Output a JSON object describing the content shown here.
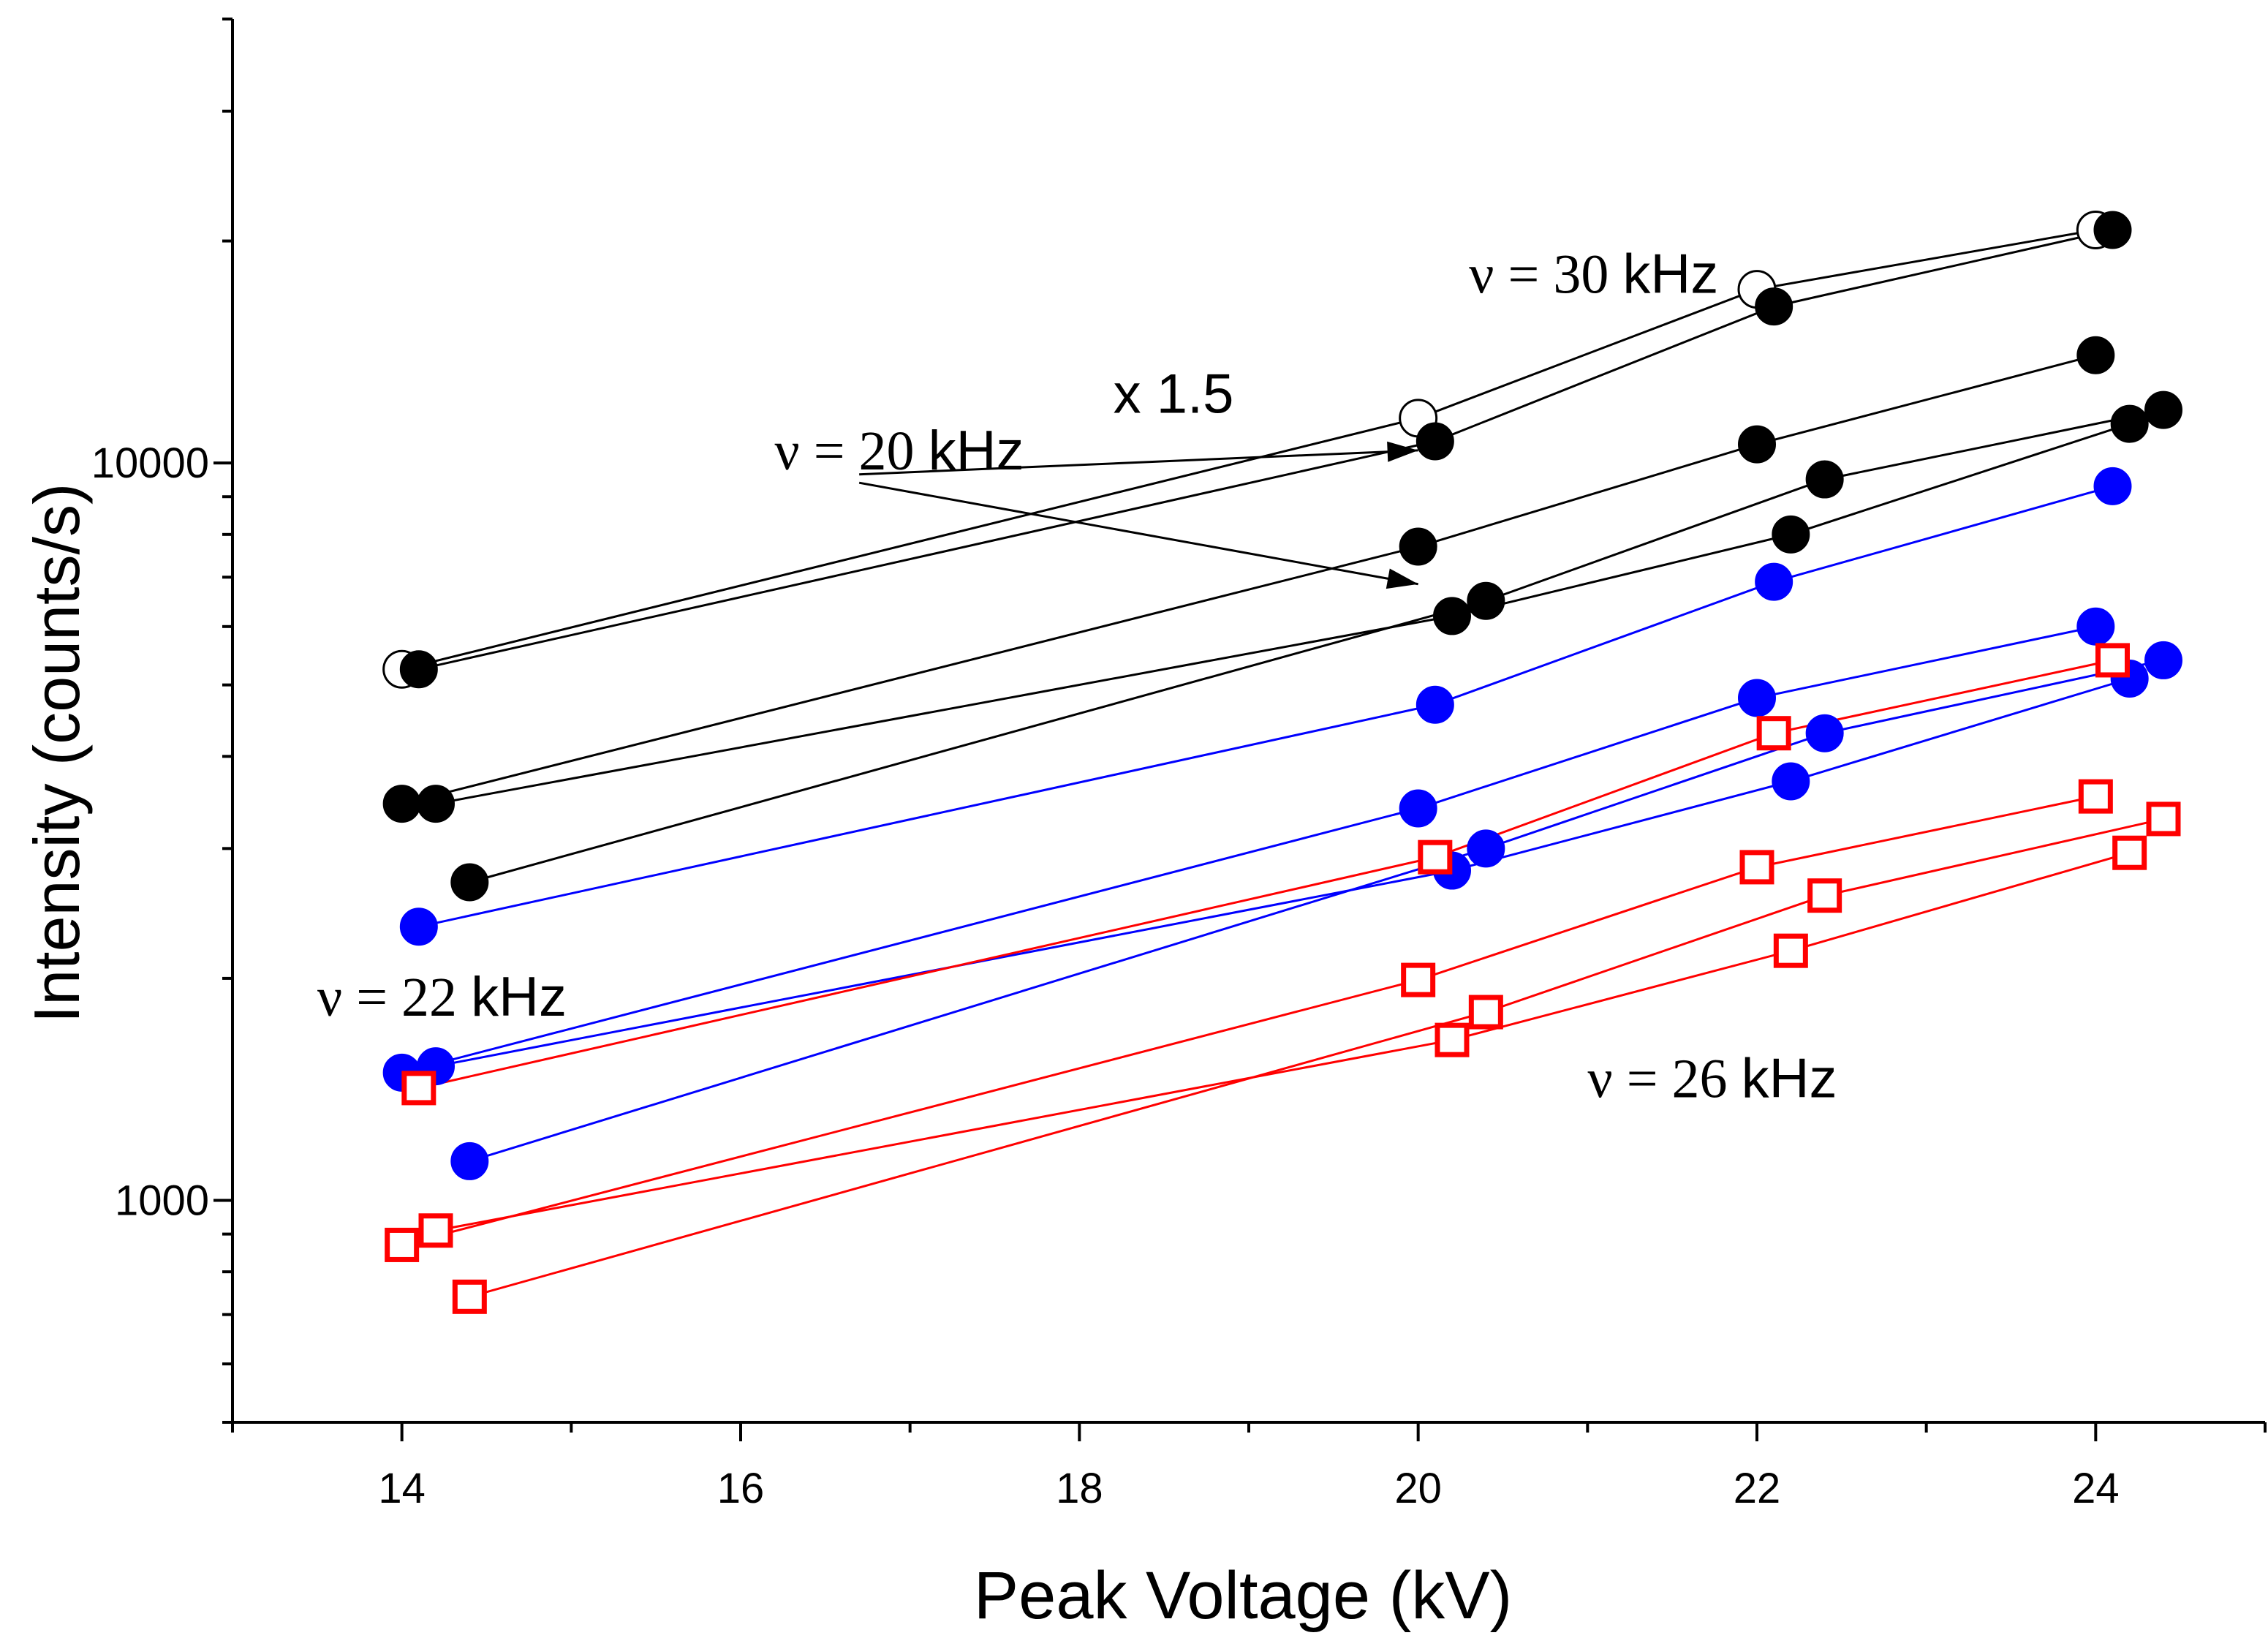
{
  "chart_data": {
    "type": "scatter",
    "title": "",
    "xlabel": "Peak Voltage  (kV)",
    "ylabel": "Intensity (counts/s)",
    "xlim": [
      13,
      25
    ],
    "ylim": [
      500,
      40000
    ],
    "yscale": "log",
    "x_ticks": [
      14,
      16,
      18,
      20,
      22,
      24
    ],
    "y_ticks": [
      1000,
      10000
    ],
    "grid": false,
    "colors": {
      "black": "#000000",
      "blue": "#0000ff",
      "red": "#ff0000"
    },
    "series": [
      {
        "name": "30 kHz (x 1.5)",
        "color": "#000000",
        "marker": "open-circle",
        "x": [
          14.0,
          20.0,
          22.0,
          24.0
        ],
        "y": [
          5250,
          11500,
          17200,
          20700
        ]
      },
      {
        "name": "30 kHz",
        "color": "#000000",
        "marker": "filled-circle",
        "x": [
          14.1,
          20.1,
          22.1,
          24.1
        ],
        "y": [
          5250,
          10700,
          16300,
          20700
        ]
      },
      {
        "name": "black-3",
        "color": "#000000",
        "marker": "filled-circle",
        "x": [
          14.0,
          20.0,
          22.0,
          24.0
        ],
        "y": [
          3450,
          7700,
          10600,
          14000
        ]
      },
      {
        "name": "black-4",
        "color": "#000000",
        "marker": "filled-circle",
        "x": [
          14.2,
          20.2,
          22.2,
          24.2
        ],
        "y": [
          3450,
          6200,
          8000,
          11300
        ]
      },
      {
        "name": "black-5",
        "color": "#000000",
        "marker": "filled-circle",
        "x": [
          14.4,
          20.4,
          22.4,
          24.4
        ],
        "y": [
          2700,
          6500,
          9500,
          11800
        ]
      },
      {
        "name": "blue-1",
        "color": "#0000ff",
        "marker": "filled-circle",
        "x": [
          14.1,
          20.1,
          22.1,
          24.1
        ],
        "y": [
          2350,
          4700,
          6900,
          9300
        ]
      },
      {
        "name": "blue-2",
        "color": "#0000ff",
        "marker": "filled-circle",
        "x": [
          14.0,
          20.0,
          22.0,
          24.0
        ],
        "y": [
          1490,
          3400,
          4800,
          6000
        ]
      },
      {
        "name": "blue-3",
        "color": "#0000ff",
        "marker": "filled-circle",
        "x": [
          14.2,
          20.2,
          22.2,
          24.2
        ],
        "y": [
          1520,
          2800,
          3700,
          5100
        ]
      },
      {
        "name": "blue-4",
        "color": "#0000ff",
        "marker": "filled-circle",
        "x": [
          14.4,
          20.4,
          22.4,
          24.4
        ],
        "y": [
          1130,
          3000,
          4300,
          5400
        ]
      },
      {
        "name": "red-1",
        "color": "#ff0000",
        "marker": "open-square",
        "x": [
          14.1,
          20.1,
          22.1,
          24.1
        ],
        "y": [
          1420,
          2920,
          4300,
          5400
        ]
      },
      {
        "name": "red-2",
        "color": "#ff0000",
        "marker": "open-square",
        "x": [
          14.0,
          20.0,
          22.0,
          24.0
        ],
        "y": [
          870,
          1990,
          2830,
          3530
        ]
      },
      {
        "name": "red-3",
        "color": "#ff0000",
        "marker": "open-square",
        "x": [
          14.2,
          20.2,
          22.2,
          24.2
        ],
        "y": [
          910,
          1650,
          2180,
          2960
        ]
      },
      {
        "name": "red-4",
        "color": "#ff0000",
        "marker": "open-square",
        "x": [
          14.4,
          20.4,
          22.4,
          24.4
        ],
        "y": [
          740,
          1800,
          2590,
          3290
        ]
      }
    ],
    "annotations": {
      "nu30": {
        "greek": "ν = 30 ",
        "unit": "kHz",
        "x": 20.3,
        "y": 17000
      },
      "x15": {
        "text": "x 1.5",
        "x": 18.2,
        "y": 11700
      },
      "nu20": {
        "greek": "ν = 20 ",
        "unit": "kHz",
        "x": 16.2,
        "y": 9800
      },
      "nu22": {
        "greek": "ν = 22 ",
        "unit": "kHz",
        "x": 13.5,
        "y": 1780
      },
      "nu26": {
        "greek": "ν = 26 ",
        "unit": "kHz",
        "x": 21.0,
        "y": 1380
      },
      "arrows": [
        {
          "from": [
            16.7,
            9650
          ],
          "to": [
            20.0,
            10400
          ]
        },
        {
          "from": [
            16.7,
            9400
          ],
          "to": [
            20.0,
            6850
          ]
        }
      ]
    }
  }
}
